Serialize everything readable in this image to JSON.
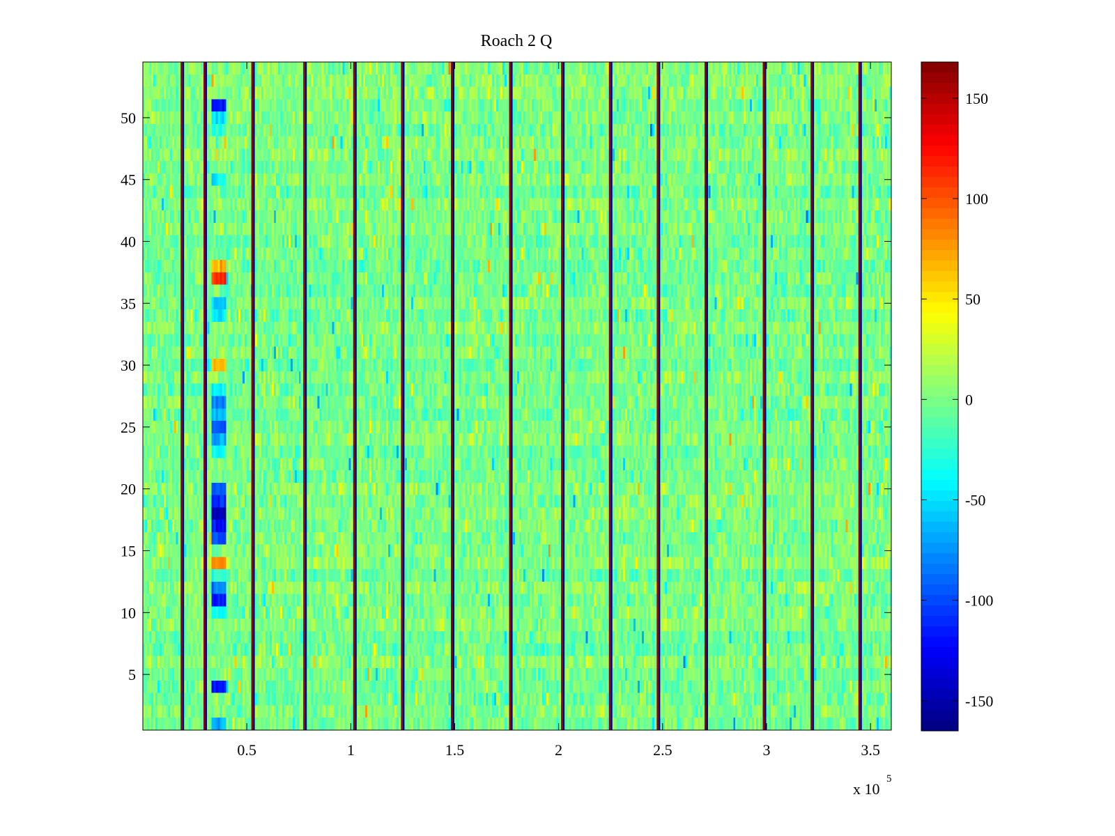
{
  "chart_data": {
    "type": "heatmap",
    "title": "Roach 2 Q",
    "xlabel": "",
    "ylabel": "",
    "x_multiplier_label": "x 10",
    "x_multiplier_exponent": "5",
    "xlim": [
      0,
      3.6
    ],
    "ylim": [
      0.5,
      54.5
    ],
    "x_ticks": [
      0.5,
      1,
      1.5,
      2,
      2.5,
      3,
      3.5
    ],
    "x_tick_labels": [
      "0.5",
      "1",
      "1.5",
      "2",
      "2.5",
      "3",
      "3.5"
    ],
    "y_ticks": [
      5,
      10,
      15,
      20,
      25,
      30,
      35,
      40,
      45,
      50
    ],
    "y_tick_labels": [
      "5",
      "10",
      "15",
      "20",
      "25",
      "30",
      "35",
      "40",
      "45",
      "50"
    ],
    "color_range": [
      -165,
      168
    ],
    "colorbar_ticks": [
      150,
      100,
      50,
      0,
      -50,
      -100,
      -150
    ],
    "colorbar_tick_labels": [
      "150",
      "100",
      "50",
      "0",
      "-50",
      "-100",
      "-150"
    ],
    "colormap": "jet",
    "background_level": 0,
    "background_spread": 28,
    "n_rows": 54,
    "n_cols": 360,
    "stripe_x": [
      0.19,
      0.3,
      0.53,
      0.78,
      1.02,
      1.25,
      1.49,
      1.77,
      2.02,
      2.25,
      2.48,
      2.71,
      2.99,
      3.22,
      3.45
    ],
    "feature_x_range": [
      0.33,
      0.4
    ],
    "feature_rows": [
      {
        "y": 51,
        "value": -120
      },
      {
        "y": 50,
        "value": -45
      },
      {
        "y": 49,
        "value": -35
      },
      {
        "y": 45,
        "value": -40
      },
      {
        "y": 37,
        "value": 110
      },
      {
        "y": 38,
        "value": 70
      },
      {
        "y": 35,
        "value": -55
      },
      {
        "y": 34,
        "value": -45
      },
      {
        "y": 30,
        "value": 65
      },
      {
        "y": 28,
        "value": -40
      },
      {
        "y": 27,
        "value": -80
      },
      {
        "y": 26,
        "value": -60
      },
      {
        "y": 25,
        "value": -100
      },
      {
        "y": 24,
        "value": -70
      },
      {
        "y": 23,
        "value": -45
      },
      {
        "y": 20,
        "value": -90
      },
      {
        "y": 19,
        "value": -110
      },
      {
        "y": 18,
        "value": -150
      },
      {
        "y": 17,
        "value": -120
      },
      {
        "y": 16,
        "value": -100
      },
      {
        "y": 14,
        "value": 80
      },
      {
        "y": 13,
        "value": -30
      },
      {
        "y": 12,
        "value": -80
      },
      {
        "y": 11,
        "value": -110
      },
      {
        "y": 10,
        "value": -40
      },
      {
        "y": 4,
        "value": -120
      },
      {
        "y": 1,
        "value": -60
      }
    ]
  }
}
